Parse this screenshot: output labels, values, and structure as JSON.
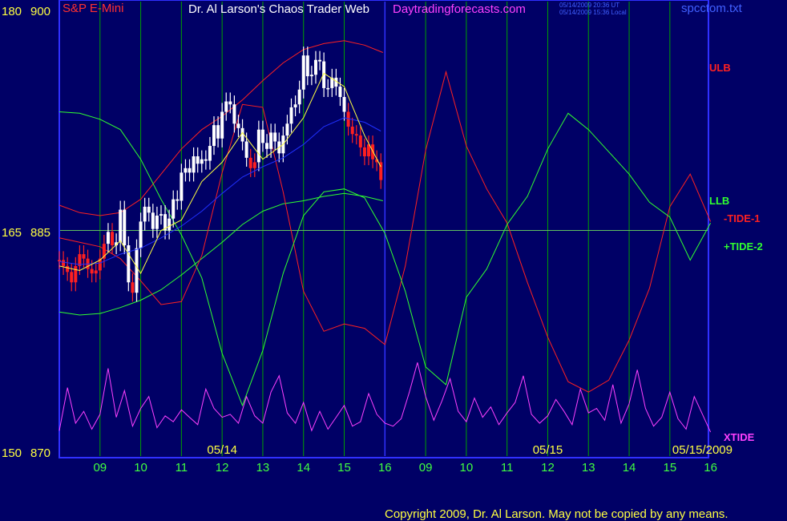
{
  "chart_data": {
    "type": "line",
    "title": "Dr. Al Larson's Chaos Trader Web",
    "symbol": "S&P E-Mini",
    "site": "Daytradingforecasts.com",
    "file": "spcctom.txt",
    "stamps": [
      "05/14/2009 20:36 UT",
      "05/14/2009 15:36 Local"
    ],
    "copyright": "Copyright 2009, Dr. Al Larson. May not be copied by any means.",
    "left_axis": [
      {
        "tide": "180",
        "price": "900",
        "value": 900
      },
      {
        "tide": "165",
        "price": "885",
        "value": 885
      },
      {
        "tide": "150",
        "price": "870",
        "value": 870
      }
    ],
    "ylim": [
      870,
      900
    ],
    "hour_ticks": [
      "09",
      "10",
      "11",
      "12",
      "13",
      "14",
      "15",
      "16",
      "09",
      "10",
      "11",
      "12",
      "13",
      "14",
      "15",
      "16"
    ],
    "date_labels": [
      {
        "label": "05/14",
        "hour": 4
      },
      {
        "label": "05/15",
        "hour": 12
      },
      {
        "label": "05/15/2009",
        "hour": 15.8
      }
    ],
    "series_labels": [
      {
        "name": "ULB",
        "color": "#ff2020"
      },
      {
        "name": "LLB",
        "color": "#30ff30"
      },
      {
        "name": "-TIDE-1",
        "color": "#ff2020"
      },
      {
        "name": "+TIDE-2",
        "color": "#30ff30"
      },
      {
        "name": "XTIDE",
        "color": "#ff40ff"
      }
    ],
    "grid": true,
    "colors": {
      "background": "#000066",
      "frame": "#3030ff",
      "grid": "#00a000",
      "zero_line": "#60c060",
      "axis_text": "#ffff40",
      "date_text": "#ffff40",
      "hour_text": "#40ff40",
      "symbol": "#ff3030",
      "title": "#ffffff",
      "site": "#ff40ff",
      "file": "#4060ff",
      "stamp": "#4060ff",
      "copyright": "#ffff40"
    },
    "series": [
      {
        "name": "ULB",
        "color": "#ff2020",
        "x": [
          0,
          0.5,
          1,
          1.5,
          2,
          2.5,
          3,
          3.5,
          4,
          4.5,
          5,
          5.5,
          6,
          6.5,
          7,
          7.5,
          7.95
        ],
        "y": [
          886.7,
          886.2,
          886.0,
          886.2,
          887.1,
          888.8,
          890.5,
          891.8,
          892.7,
          893.8,
          895.1,
          896.3,
          897.2,
          897.6,
          897.8,
          897.5,
          897.0
        ]
      },
      {
        "name": "LLB",
        "color": "#30ff30",
        "x": [
          0,
          0.5,
          1,
          1.5,
          2,
          2.5,
          3,
          3.5,
          4,
          4.5,
          5,
          5.5,
          6,
          6.5,
          7,
          7.5,
          7.95
        ],
        "y": [
          879.5,
          879.3,
          879.4,
          879.8,
          880.3,
          881.0,
          882.0,
          883.1,
          884.2,
          885.4,
          886.3,
          886.8,
          887.0,
          887.3,
          887.5,
          887.3,
          887.0
        ]
      },
      {
        "name": "-TIDE-1",
        "color": "#ff2020",
        "x": [
          0,
          0.5,
          1,
          1.5,
          2,
          2.5,
          3,
          3.5,
          4,
          4.5,
          5,
          5.5,
          6,
          6.5,
          7,
          7.5,
          8,
          8.5,
          9,
          9.5,
          10,
          10.5,
          11,
          11.5,
          12,
          12.5,
          13,
          13.5,
          14,
          14.5,
          15,
          15.5,
          16
        ],
        "y": [
          164.5,
          164.2,
          163.9,
          163.1,
          161.6,
          160.0,
          160.2,
          163.3,
          168.9,
          173.5,
          173.3,
          167.6,
          160.9,
          158.2,
          158.7,
          158.4,
          157.3,
          162.6,
          170.4,
          175.7,
          170.7,
          167.8,
          165.5,
          161.5,
          157.8,
          154.8,
          154.1,
          154.9,
          157.6,
          161.1,
          166.6,
          168.8,
          165.6
        ]
      },
      {
        "name": "+TIDE-2",
        "color": "#30ff30",
        "x": [
          0,
          0.5,
          1,
          1.5,
          2,
          2.5,
          3,
          3.5,
          4,
          4.5,
          5,
          5.5,
          6,
          6.5,
          7,
          7.5,
          8,
          8.5,
          9,
          9.5,
          10,
          10.5,
          11,
          11.5,
          12,
          12.5,
          13,
          13.5,
          14,
          14.5,
          15,
          15.5,
          16
        ],
        "y": [
          173.0,
          172.9,
          172.5,
          171.8,
          169.8,
          167.1,
          164.7,
          161.8,
          156.7,
          153.2,
          156.9,
          162.1,
          166.0,
          167.6,
          167.8,
          167.2,
          164.8,
          160.9,
          155.8,
          154.6,
          160.5,
          162.4,
          165.4,
          167.3,
          170.5,
          172.9,
          171.8,
          170.3,
          168.8,
          166.9,
          165.9,
          163.0,
          165.5
        ]
      },
      {
        "name": "XTIDE",
        "color": "#ff40ff",
        "x": [
          0,
          0.2,
          0.4,
          0.6,
          0.8,
          1,
          1.2,
          1.4,
          1.6,
          1.8,
          2,
          2.2,
          2.4,
          2.6,
          2.8,
          3,
          3.2,
          3.4,
          3.6,
          3.8,
          4,
          4.2,
          4.4,
          4.6,
          4.8,
          5,
          5.2,
          5.4,
          5.6,
          5.8,
          6,
          6.2,
          6.4,
          6.6,
          6.8,
          7,
          7.2,
          7.4,
          7.6,
          7.8,
          8,
          8.2,
          8.4,
          8.6,
          8.8,
          9,
          9.2,
          9.4,
          9.6,
          9.8,
          10,
          10.2,
          10.4,
          10.6,
          10.8,
          11,
          11.2,
          11.4,
          11.6,
          11.8,
          12,
          12.2,
          12.4,
          12.6,
          12.8,
          13,
          13.2,
          13.4,
          13.6,
          13.8,
          14,
          14.2,
          14.4,
          14.6,
          14.8,
          15,
          15.2,
          15.4,
          15.6,
          15.8,
          16
        ],
        "y": [
          151.5,
          154.4,
          152.0,
          152.8,
          151.6,
          152.6,
          155.7,
          152.4,
          154.2,
          151.8,
          153.0,
          153.8,
          151.7,
          152.5,
          152.1,
          152.9,
          152.4,
          151.9,
          154.3,
          153.0,
          152.4,
          152.6,
          152.0,
          153.8,
          152.5,
          152.0,
          154.1,
          155.2,
          152.7,
          152.0,
          153.4,
          151.5,
          152.8,
          151.6,
          152.4,
          153.2,
          151.8,
          152.1,
          154.0,
          152.6,
          152.0,
          151.8,
          152.3,
          154.1,
          156.1,
          153.8,
          152.2,
          153.5,
          155.0,
          152.8,
          152.1,
          153.7,
          152.4,
          153.1,
          151.9,
          152.7,
          153.4,
          155.2,
          152.6,
          152.0,
          152.5,
          153.6,
          152.8,
          151.9,
          154.3,
          152.7,
          153.0,
          152.2,
          154.6,
          152.0,
          153.3,
          155.6,
          153.0,
          151.8,
          152.4,
          154.1,
          152.3,
          151.6,
          153.8,
          152.6,
          151.4
        ]
      }
    ],
    "price": {
      "x": [
        0,
        0.1,
        0.2,
        0.3,
        0.4,
        0.5,
        0.6,
        0.7,
        0.8,
        0.9,
        1,
        1.1,
        1.2,
        1.3,
        1.4,
        1.5,
        1.6,
        1.7,
        1.8,
        1.9,
        2,
        2.1,
        2.2,
        2.3,
        2.4,
        2.5,
        2.6,
        2.7,
        2.8,
        2.9,
        3,
        3.1,
        3.2,
        3.3,
        3.4,
        3.5,
        3.6,
        3.7,
        3.8,
        3.9,
        4,
        4.1,
        4.2,
        4.3,
        4.4,
        4.5,
        4.6,
        4.7,
        4.8,
        4.9,
        5,
        5.1,
        5.2,
        5.3,
        5.4,
        5.5,
        5.6,
        5.7,
        5.8,
        5.9,
        6,
        6.1,
        6.2,
        6.3,
        6.4,
        6.5,
        6.6,
        6.7,
        6.8,
        6.9,
        7,
        7.1,
        7.2,
        7.3,
        7.4,
        7.5,
        7.6,
        7.7,
        7.8,
        7.9
      ],
      "close": [
        883.0,
        882.6,
        882.2,
        881.5,
        882.6,
        883.4,
        883.1,
        882.4,
        882.1,
        882.3,
        883.1,
        884.1,
        884.9,
        884.0,
        884.2,
        886.4,
        884.0,
        881.5,
        880.8,
        883.8,
        885.6,
        886.6,
        886.2,
        885.1,
        886.0,
        886.1,
        885.0,
        885.8,
        887.1,
        887.0,
        888.9,
        889.2,
        888.9,
        890.0,
        889.5,
        889.8,
        889.7,
        890.7,
        892.1,
        891.2,
        893.0,
        893.7,
        893.5,
        892.2,
        891.9,
        891.0,
        889.9,
        889.2,
        889.6,
        891.8,
        890.9,
        890.5,
        891.6,
        891.0,
        890.2,
        891.4,
        892.2,
        893.3,
        893.5,
        894.5,
        896.8,
        895.4,
        895.5,
        896.5,
        896.4,
        894.6,
        894.6,
        895.3,
        894.7,
        894.0,
        893.0,
        892.0,
        891.5,
        891.4,
        890.6,
        890.0,
        890.8,
        889.8,
        889.6,
        888.4
      ],
      "colors": [
        "#ff2020",
        "#ff2020",
        "#ff2020",
        "#ff2020",
        "#ff2020",
        "#ff2020",
        "#ff2020",
        "#ff2020",
        "#ff2020",
        "#ff2020",
        "#ff2020",
        "#ff2020",
        "#ffffff",
        "#ff2020",
        "#ffffff",
        "#ffffff",
        "#ffffff",
        "#ffffff",
        "#ff2020",
        "#ffffff",
        "#ffffff",
        "#ffffff",
        "#ffffff",
        "#ffffff",
        "#ffffff",
        "#ffffff",
        "#ffffff",
        "#ffffff",
        "#ffffff",
        "#ffffff",
        "#ffffff",
        "#ffffff",
        "#ffffff",
        "#ffffff",
        "#ffffff",
        "#ffffff",
        "#ffffff",
        "#ffffff",
        "#ffffff",
        "#ffffff",
        "#ffffff",
        "#ffffff",
        "#ffffff",
        "#ffffff",
        "#ffffff",
        "#ffffff",
        "#ffffff",
        "#ff2020",
        "#ff2020",
        "#ffffff",
        "#ffffff",
        "#ffffff",
        "#ffffff",
        "#ffffff",
        "#ffffff",
        "#ffffff",
        "#ffffff",
        "#ffffff",
        "#ffffff",
        "#ffffff",
        "#ffffff",
        "#ffffff",
        "#ffffff",
        "#ffffff",
        "#ffffff",
        "#ffffff",
        "#ffffff",
        "#ffffff",
        "#ffffff",
        "#ffffff",
        "#ffffff",
        "#ff2020",
        "#ff2020",
        "#ff2020",
        "#ff2020",
        "#ff2020",
        "#ff2020",
        "#ff2020",
        "#ff2020",
        "#ff2020"
      ]
    },
    "ma_fast": {
      "color": "#ffff40",
      "x": [
        0,
        0.5,
        1,
        1.5,
        2,
        2.5,
        3,
        3.5,
        4,
        4.5,
        5,
        5.5,
        6,
        6.5,
        7,
        7.5,
        7.9
      ],
      "y": [
        882.6,
        882.3,
        883.0,
        884.3,
        882.1,
        885.0,
        885.7,
        888.3,
        889.6,
        891.6,
        889.8,
        890.8,
        892.6,
        895.6,
        894.7,
        891.4,
        889.3
      ]
    },
    "ma_slow": {
      "color": "#2030ff",
      "x": [
        0,
        0.5,
        1,
        1.5,
        2,
        2.5,
        3,
        3.5,
        4,
        4.5,
        5,
        5.5,
        6,
        6.5,
        7,
        7.5,
        7.9
      ],
      "y": [
        882.9,
        882.7,
        882.8,
        883.4,
        883.8,
        884.5,
        885.3,
        886.3,
        887.5,
        888.6,
        889.3,
        889.9,
        890.8,
        892.0,
        892.6,
        892.3,
        891.7
      ]
    }
  }
}
